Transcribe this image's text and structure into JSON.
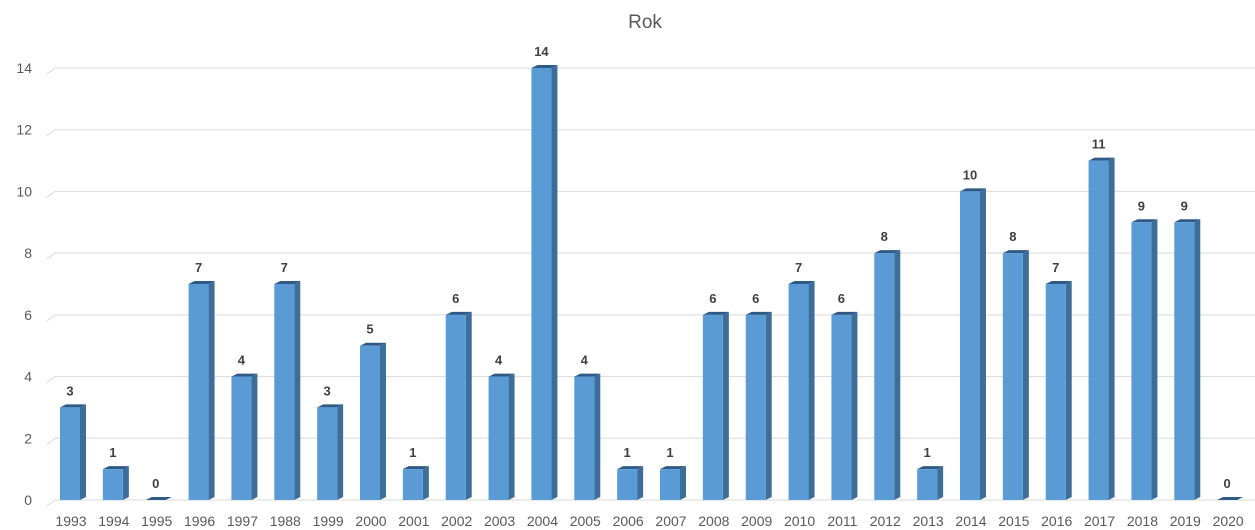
{
  "chart_data": {
    "type": "bar",
    "title": "Rok",
    "xlabel": "",
    "ylabel": "",
    "categories": [
      "1993",
      "1994",
      "1995",
      "1996",
      "1997",
      "1988",
      "1999",
      "2000",
      "2001",
      "2002",
      "2003",
      "2004",
      "2005",
      "2006",
      "2007",
      "2008",
      "2009",
      "2010",
      "2011",
      "2012",
      "2013",
      "2014",
      "2015",
      "2016",
      "2017",
      "2018",
      "2019",
      "2020"
    ],
    "values": [
      3,
      1,
      0,
      7,
      4,
      7,
      3,
      5,
      1,
      6,
      4,
      14,
      4,
      1,
      1,
      6,
      6,
      7,
      6,
      8,
      1,
      10,
      8,
      7,
      11,
      9,
      9,
      0
    ],
    "ylim": [
      0,
      14
    ],
    "yticks": [
      0,
      2,
      4,
      6,
      8,
      10,
      12,
      14
    ],
    "grid": true,
    "legend": "none",
    "bar_style": "3d",
    "colors": {
      "bar_front": "#5b9bd5",
      "bar_side": "#3d6d99",
      "bar_top": "#2f5a85",
      "grid": "#d9d9d9",
      "axis_text": "#595959",
      "data_label": "#404040"
    }
  }
}
